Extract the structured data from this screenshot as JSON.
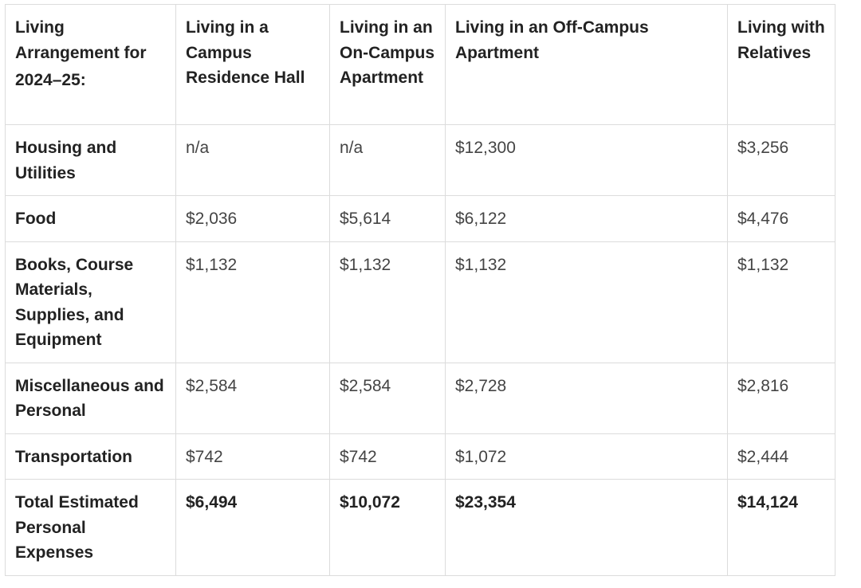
{
  "table": {
    "header": {
      "label_line1": "Living",
      "label_line2": "Arrangement for",
      "label_line3": "2024–25:",
      "columns": [
        "Living in a Campus Residence Hall",
        "Living in an On-Campus Apartment",
        "Living in an Off-Campus Apartment",
        "Living with Relatives"
      ]
    },
    "rows": [
      {
        "label": "Housing and Utilities",
        "values": [
          "n/a",
          "n/a",
          "$12,300",
          "$3,256"
        ]
      },
      {
        "label": "Food",
        "values": [
          "$2,036",
          "$5,614",
          "$6,122",
          "$4,476"
        ]
      },
      {
        "label": "Books, Course Materials, Supplies, and Equipment",
        "values": [
          "$1,132",
          "$1,132",
          "$1,132",
          "$1,132"
        ]
      },
      {
        "label": "Miscellaneous and Personal",
        "values": [
          "$2,584",
          "$2,584",
          "$2,728",
          "$2,816"
        ]
      },
      {
        "label": "Transportation",
        "values": [
          "$742",
          "$742",
          "$1,072",
          "$2,444"
        ]
      }
    ],
    "total": {
      "label": "Total Estimated Personal Expenses",
      "values": [
        "$6,494",
        "$10,072",
        "$23,354",
        "$14,124"
      ]
    }
  }
}
